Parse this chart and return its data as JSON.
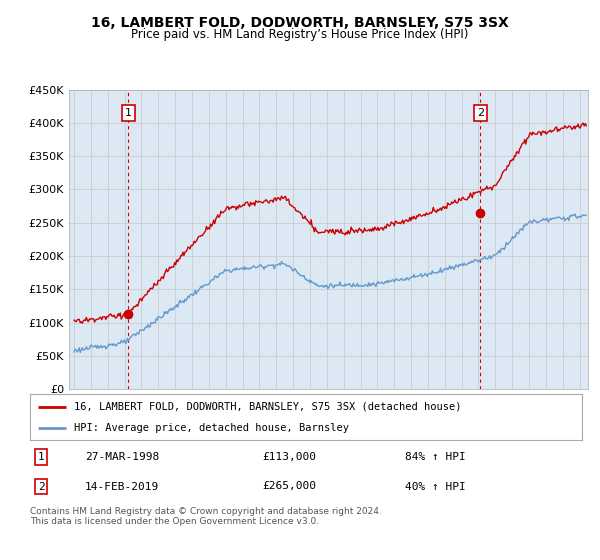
{
  "title": "16, LAMBERT FOLD, DODWORTH, BARNSLEY, S75 3SX",
  "subtitle": "Price paid vs. HM Land Registry’s House Price Index (HPI)",
  "legend_line1": "16, LAMBERT FOLD, DODWORTH, BARNSLEY, S75 3SX (detached house)",
  "legend_line2": "HPI: Average price, detached house, Barnsley",
  "footnote": "Contains HM Land Registry data © Crown copyright and database right 2024.\nThis data is licensed under the Open Government Licence v3.0.",
  "sale1_label": "1",
  "sale1_date": "27-MAR-1998",
  "sale1_price": "£113,000",
  "sale1_hpi": "84% ↑ HPI",
  "sale1_year": 1998.23,
  "sale1_value": 113000,
  "sale2_label": "2",
  "sale2_date": "14-FEB-2019",
  "sale2_price": "£265,000",
  "sale2_hpi": "40% ↑ HPI",
  "sale2_year": 2019.12,
  "sale2_value": 265000,
  "ylim": [
    0,
    450000
  ],
  "yticks": [
    0,
    50000,
    100000,
    150000,
    200000,
    250000,
    300000,
    350000,
    400000,
    450000
  ],
  "ytick_labels": [
    "£0",
    "£50K",
    "£100K",
    "£150K",
    "£200K",
    "£250K",
    "£300K",
    "£350K",
    "£400K",
    "£450K"
  ],
  "red_color": "#cc0000",
  "blue_color": "#6699cc",
  "grid_color": "#cccccc",
  "background_color": "#ffffff",
  "plot_bg_color": "#dce9f5"
}
